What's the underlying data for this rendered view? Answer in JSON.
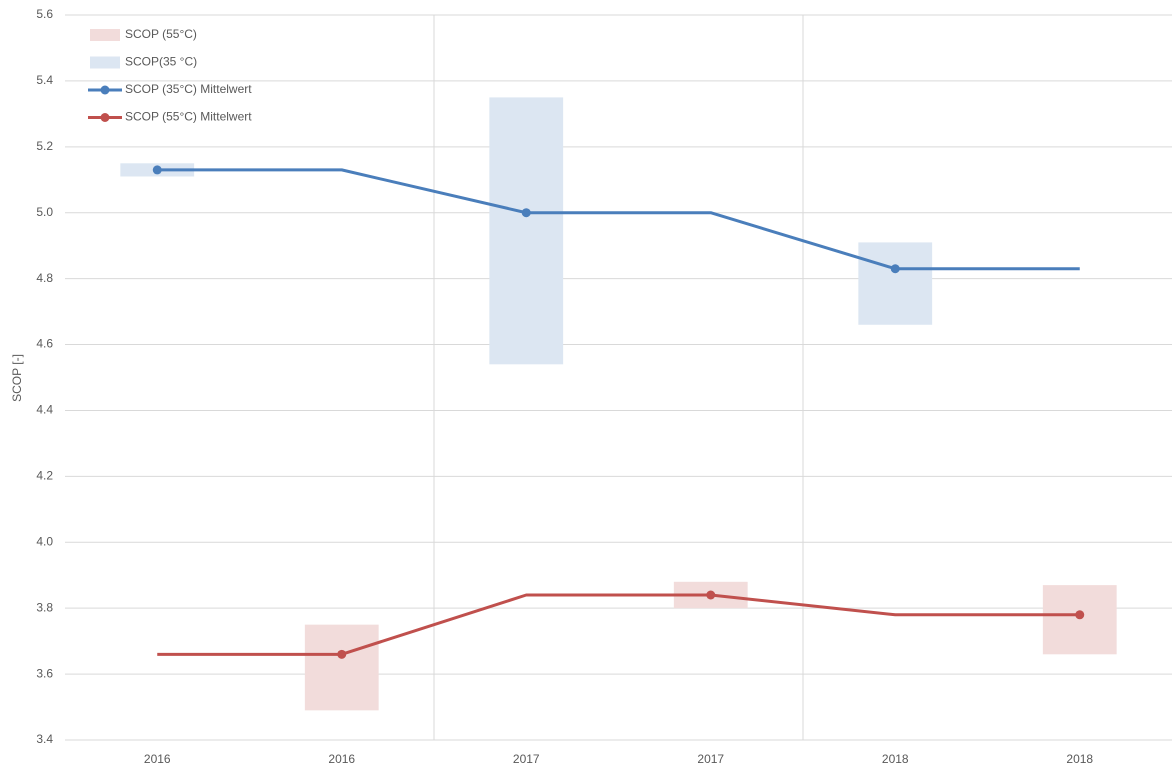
{
  "chart_data": {
    "type": "range-line",
    "y_label": "SCOP [-]",
    "categories": [
      "2016",
      "2016",
      "2017",
      "2017",
      "2018",
      "2018"
    ],
    "ylim": [
      3.4,
      5.6
    ],
    "yticks": [
      {
        "value": 3.4,
        "label": "3.4"
      },
      {
        "value": 3.6,
        "label": "3.6"
      },
      {
        "value": 3.8,
        "label": "3.8"
      },
      {
        "value": 4.0,
        "label": "4.0"
      },
      {
        "value": 4.2,
        "label": "4.2"
      },
      {
        "value": 4.4,
        "label": "4.4"
      },
      {
        "value": 4.6,
        "label": "4.6"
      },
      {
        "value": 4.8,
        "label": "4.8"
      },
      {
        "value": 5.0,
        "label": "5.0"
      },
      {
        "value": 5.2,
        "label": "5.2"
      },
      {
        "value": 5.4,
        "label": "5.4"
      },
      {
        "value": 5.6,
        "label": "5.6"
      }
    ],
    "grid": true,
    "legend": "top-left",
    "series": [
      {
        "name": "SCOP (55°C)",
        "type": "range",
        "color": "#f2dcdb",
        "low": [
          null,
          3.49,
          null,
          3.8,
          null,
          3.66
        ],
        "high": [
          null,
          3.75,
          null,
          3.88,
          null,
          3.87
        ]
      },
      {
        "name": "SCOP(35 °C)",
        "type": "range",
        "color": "#dce6f2",
        "low": [
          5.11,
          null,
          4.54,
          null,
          4.66,
          null
        ],
        "high": [
          5.15,
          null,
          5.35,
          null,
          4.91,
          null
        ]
      },
      {
        "name": "SCOP (35°C) Mittelwert",
        "type": "line",
        "color": "#4a7ebb",
        "values": [
          5.13,
          5.13,
          5.0,
          5.0,
          4.83,
          4.83
        ],
        "markers": [
          true,
          false,
          true,
          false,
          true,
          false
        ]
      },
      {
        "name": "SCOP (55°C) Mittelwert",
        "type": "line",
        "color": "#c0504d",
        "values": [
          3.66,
          3.66,
          3.84,
          3.84,
          3.78,
          3.78
        ],
        "markers": [
          false,
          true,
          false,
          true,
          false,
          true
        ]
      }
    ]
  }
}
